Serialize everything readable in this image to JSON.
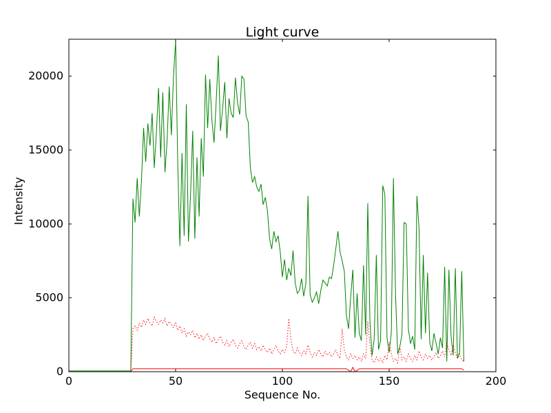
{
  "chart_data": {
    "type": "line",
    "title": "Light curve",
    "xlabel": "Sequence No.",
    "ylabel": "Intensity",
    "xlim": [
      0,
      200
    ],
    "ylim": [
      0,
      22500
    ],
    "xticks": [
      0,
      50,
      100,
      150,
      200
    ],
    "yticks": [
      0,
      5000,
      10000,
      15000,
      20000
    ],
    "grid": false,
    "legend": "none",
    "background_color": "#ffffff",
    "frame_color": "#000000",
    "series": [
      {
        "name": "green-solid-intensity",
        "color": "#008000",
        "style": "solid",
        "x_start": 0,
        "x_step": 1,
        "values": [
          50,
          50,
          50,
          50,
          50,
          50,
          50,
          50,
          50,
          50,
          50,
          50,
          50,
          50,
          50,
          50,
          50,
          50,
          50,
          50,
          50,
          50,
          50,
          50,
          50,
          50,
          50,
          50,
          50,
          50,
          11700,
          10100,
          13100,
          10500,
          12900,
          16500,
          14200,
          16800,
          15300,
          17500,
          13800,
          16200,
          19200,
          14500,
          18900,
          13500,
          15600,
          19300,
          16000,
          20000,
          22400,
          14000,
          8500,
          14800,
          9200,
          18100,
          8800,
          12000,
          16300,
          9000,
          14500,
          10500,
          15800,
          13200,
          20100,
          16500,
          19800,
          17000,
          15500,
          18300,
          21400,
          16300,
          17800,
          19600,
          15800,
          18500,
          17500,
          17200,
          19900,
          18200,
          17400,
          20000,
          19800,
          17300,
          16900,
          13800,
          12800,
          13200,
          12500,
          12200,
          12700,
          11300,
          11800,
          10900,
          9000,
          8300,
          9500,
          8800,
          9200,
          8100,
          6400,
          7600,
          6200,
          7000,
          6500,
          8200,
          6000,
          5300,
          5500,
          6300,
          5100,
          6000,
          11900,
          5200,
          4700,
          5000,
          5400,
          4600,
          5500,
          6200,
          6000,
          5800,
          6400,
          6300,
          7200,
          8300,
          9500,
          8100,
          7500,
          6800,
          3800,
          2900,
          5100,
          6900,
          2300,
          5300,
          2600,
          2100,
          7200,
          2500,
          11400,
          3400,
          1100,
          2200,
          7900,
          1500,
          2100,
          12600,
          12000,
          2300,
          1300,
          2600,
          13100,
          5200,
          1200,
          1700,
          2500,
          10100,
          10000,
          2900,
          1900,
          2400,
          1500,
          11900,
          9700,
          2200,
          7900,
          2600,
          6700,
          2000,
          1400,
          2600,
          1900,
          1200,
          2300,
          1600,
          7100,
          700,
          6900,
          2400,
          1100,
          7000,
          900,
          1300,
          6800,
          700
        ]
      },
      {
        "name": "red-dotted-background",
        "color": "#ff0000",
        "style": "dotted",
        "x_start": 0,
        "x_step": 1,
        "values": [
          0,
          0,
          0,
          0,
          0,
          0,
          0,
          0,
          0,
          0,
          0,
          0,
          0,
          0,
          0,
          0,
          0,
          0,
          0,
          0,
          0,
          0,
          0,
          0,
          0,
          0,
          0,
          0,
          0,
          0,
          2900,
          3100,
          2800,
          3300,
          3000,
          3500,
          3200,
          3600,
          3300,
          3100,
          3700,
          3400,
          3200,
          3500,
          3300,
          3600,
          3100,
          3400,
          3200,
          3000,
          3300,
          2800,
          3100,
          2600,
          2900,
          2400,
          2700,
          2500,
          2800,
          2300,
          2600,
          2200,
          2500,
          2100,
          2400,
          2600,
          2200,
          2000,
          2300,
          1900,
          2200,
          2400,
          2000,
          1800,
          2100,
          1700,
          2000,
          2200,
          1800,
          1600,
          1900,
          2100,
          1700,
          1500,
          1800,
          2000,
          1600,
          1900,
          1500,
          1700,
          1400,
          1800,
          1500,
          1300,
          1600,
          1200,
          1500,
          1800,
          1400,
          1200,
          1500,
          1300,
          1700,
          3600,
          2200,
          1400,
          1200,
          1600,
          1300,
          1100,
          1400,
          1200,
          1800,
          1300,
          1000,
          1300,
          1100,
          1500,
          1200,
          1000,
          1400,
          1100,
          1300,
          1000,
          1200,
          1500,
          1100,
          900,
          2900,
          1500,
          1000,
          800,
          1200,
          900,
          1100,
          800,
          1000,
          700,
          1200,
          900,
          3400,
          1800,
          800,
          600,
          1000,
          700,
          900,
          600,
          1100,
          800,
          2000,
          1200,
          700,
          900,
          600,
          1700,
          800,
          1000,
          700,
          1200,
          900,
          700,
          1100,
          800,
          1400,
          1000,
          800,
          1200,
          900,
          1100,
          800,
          1000,
          1300,
          900,
          1100,
          1400,
          1000,
          1900,
          1500,
          1100,
          1800,
          1300,
          900,
          1200,
          800,
          700
        ]
      },
      {
        "name": "red-solid-baseline",
        "color": "#ff0000",
        "style": "solid",
        "x_start": 0,
        "x_step": 1,
        "values": [
          0,
          0,
          0,
          0,
          0,
          0,
          0,
          0,
          0,
          0,
          0,
          0,
          0,
          0,
          0,
          0,
          0,
          0,
          0,
          0,
          0,
          0,
          0,
          0,
          0,
          0,
          0,
          0,
          0,
          0,
          200,
          200,
          200,
          200,
          200,
          200,
          200,
          200,
          200,
          200,
          200,
          200,
          200,
          200,
          200,
          200,
          200,
          200,
          200,
          200,
          200,
          200,
          200,
          200,
          200,
          200,
          200,
          200,
          200,
          200,
          200,
          200,
          200,
          200,
          200,
          200,
          200,
          200,
          200,
          200,
          200,
          200,
          200,
          200,
          200,
          200,
          200,
          200,
          200,
          200,
          200,
          200,
          200,
          200,
          200,
          200,
          200,
          200,
          200,
          200,
          200,
          200,
          200,
          200,
          200,
          200,
          200,
          200,
          200,
          200,
          200,
          200,
          200,
          200,
          200,
          200,
          200,
          200,
          200,
          200,
          200,
          200,
          200,
          200,
          200,
          200,
          200,
          200,
          200,
          200,
          200,
          200,
          200,
          200,
          200,
          200,
          200,
          200,
          200,
          200,
          200,
          100,
          0,
          300,
          0,
          100,
          200,
          200,
          200,
          200,
          200,
          200,
          200,
          200,
          200,
          200,
          200,
          200,
          200,
          200,
          200,
          200,
          200,
          200,
          200,
          200,
          200,
          200,
          200,
          200,
          200,
          200,
          200,
          200,
          200,
          200,
          200,
          200,
          200,
          200,
          200,
          200,
          200,
          200,
          200,
          200,
          200,
          200,
          200,
          200,
          200,
          200,
          200,
          200,
          200,
          100
        ]
      }
    ]
  }
}
